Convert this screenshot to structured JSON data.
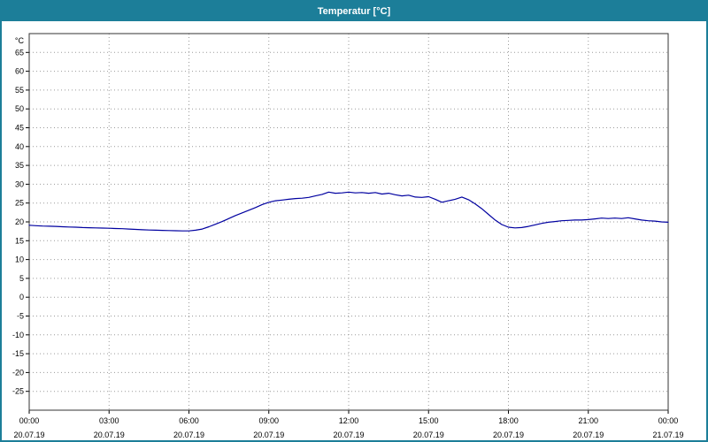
{
  "window": {
    "title": "Temperatur [°C]"
  },
  "colors": {
    "titlebar": "#1c7e99",
    "window_border": "#1c7e99",
    "plot_background": "#ffffff",
    "plot_border": "#333333",
    "grid": "#9a9a9a",
    "line": "#0000a0",
    "tick_text": "#000000"
  },
  "chart_data": {
    "type": "line",
    "title": "Temperatur [°C]",
    "ylabel": "°C",
    "xlabel": "",
    "ylim": [
      -30,
      70
    ],
    "xlim_hours": [
      0,
      24
    ],
    "grid": true,
    "legend_position": "none",
    "y_ticks": [
      65,
      60,
      55,
      50,
      45,
      40,
      35,
      30,
      25,
      20,
      15,
      10,
      5,
      0,
      -5,
      -10,
      -15,
      -20,
      -25
    ],
    "x_ticks": [
      {
        "hour": 0,
        "time": "00:00",
        "date": "20.07.19"
      },
      {
        "hour": 3,
        "time": "03:00",
        "date": "20.07.19"
      },
      {
        "hour": 6,
        "time": "06:00",
        "date": "20.07.19"
      },
      {
        "hour": 9,
        "time": "09:00",
        "date": "20.07.19"
      },
      {
        "hour": 12,
        "time": "12:00",
        "date": "20.07.19"
      },
      {
        "hour": 15,
        "time": "15:00",
        "date": "20.07.19"
      },
      {
        "hour": 18,
        "time": "18:00",
        "date": "20.07.19"
      },
      {
        "hour": 21,
        "time": "21:00",
        "date": "20.07.19"
      },
      {
        "hour": 24,
        "time": "00:00",
        "date": "21.07.19"
      }
    ],
    "series": [
      {
        "name": "Temperatur",
        "color": "#0000a0",
        "x_hours": [
          0,
          0.25,
          0.5,
          0.75,
          1,
          1.25,
          1.5,
          1.75,
          2,
          2.25,
          2.5,
          2.75,
          3,
          3.25,
          3.5,
          3.75,
          4,
          4.25,
          4.5,
          4.75,
          5,
          5.25,
          5.5,
          5.75,
          6,
          6.25,
          6.5,
          6.75,
          7,
          7.25,
          7.5,
          7.75,
          8,
          8.25,
          8.5,
          8.75,
          9,
          9.25,
          9.5,
          9.75,
          10,
          10.25,
          10.5,
          10.75,
          11,
          11.25,
          11.5,
          11.75,
          12,
          12.25,
          12.5,
          12.75,
          13,
          13.25,
          13.5,
          13.75,
          14,
          14.25,
          14.5,
          14.75,
          15,
          15.25,
          15.5,
          15.75,
          16,
          16.25,
          16.5,
          16.75,
          17,
          17.25,
          17.5,
          17.75,
          18,
          18.25,
          18.5,
          18.75,
          19,
          19.25,
          19.5,
          19.75,
          20,
          20.25,
          20.5,
          20.75,
          21,
          21.25,
          21.5,
          21.75,
          22,
          22.25,
          22.5,
          22.75,
          23,
          23.25,
          23.5,
          23.75,
          24
        ],
        "values": [
          19.1,
          19.0,
          18.9,
          18.85,
          18.8,
          18.7,
          18.65,
          18.6,
          18.5,
          18.45,
          18.4,
          18.35,
          18.3,
          18.25,
          18.2,
          18.1,
          18.0,
          17.9,
          17.85,
          17.8,
          17.75,
          17.7,
          17.65,
          17.6,
          17.6,
          17.8,
          18.1,
          18.7,
          19.4,
          20.1,
          20.9,
          21.7,
          22.4,
          23.1,
          23.8,
          24.6,
          25.2,
          25.6,
          25.8,
          26.0,
          26.2,
          26.3,
          26.5,
          26.9,
          27.3,
          27.9,
          27.6,
          27.7,
          27.9,
          27.7,
          27.8,
          27.6,
          27.8,
          27.4,
          27.6,
          27.2,
          26.9,
          27.1,
          26.6,
          26.5,
          26.7,
          26.0,
          25.2,
          25.6,
          26.0,
          26.6,
          25.9,
          24.8,
          23.5,
          22.0,
          20.5,
          19.3,
          18.6,
          18.4,
          18.5,
          18.8,
          19.2,
          19.6,
          19.9,
          20.1,
          20.3,
          20.4,
          20.5,
          20.5,
          20.6,
          20.8,
          21.0,
          20.9,
          21.0,
          20.9,
          21.1,
          20.8,
          20.5,
          20.3,
          20.2,
          20.0,
          19.9
        ]
      }
    ]
  }
}
